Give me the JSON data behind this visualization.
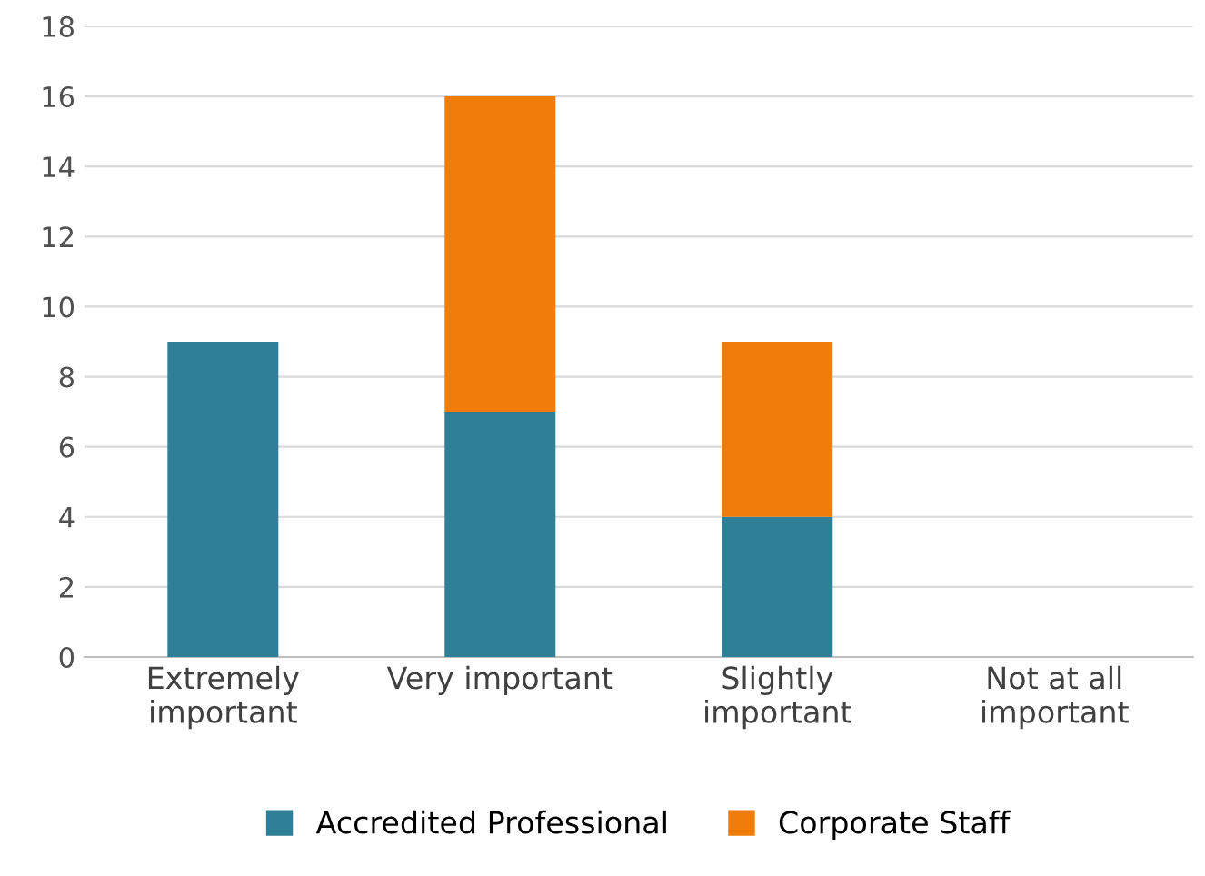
{
  "chart_data": {
    "type": "bar",
    "stacked": true,
    "categories": [
      "Extremely\nimportant",
      "Very important",
      "Slightly\nimportant",
      "Not at all\nimportant"
    ],
    "series": [
      {
        "name": "Accredited Professional",
        "color": "#2f7f96",
        "values": [
          9,
          7,
          4,
          0
        ]
      },
      {
        "name": "Corporate Staff",
        "color": "#f07c0a",
        "values": [
          0,
          9,
          5,
          0
        ]
      }
    ],
    "ylim": [
      0,
      18
    ],
    "yticks": [
      0,
      2,
      4,
      6,
      8,
      10,
      12,
      14,
      16,
      18
    ],
    "grid": "y",
    "legend": "bottom"
  }
}
